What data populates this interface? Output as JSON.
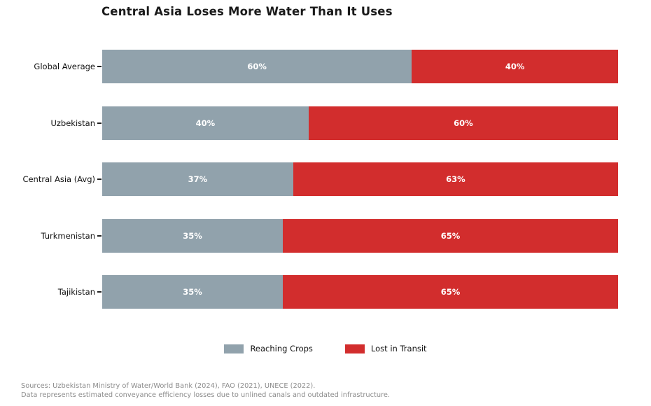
{
  "title": "Central Asia Loses More Water Than It Uses",
  "chart_data": {
    "type": "bar",
    "orientation": "horizontal",
    "stacked": true,
    "title": "Central Asia Loses More Water Than It Uses",
    "categories": [
      "Global Average",
      "Uzbekistan",
      "Central Asia (Avg)",
      "Turkmenistan",
      "Tajikistan"
    ],
    "series": [
      {
        "name": "Reaching Crops",
        "color": "#91a2ac",
        "values": [
          60,
          40,
          37,
          35,
          35
        ]
      },
      {
        "name": "Lost in Transit",
        "color": "#d22d2d",
        "values": [
          40,
          60,
          63,
          65,
          65
        ]
      }
    ],
    "value_unit": "%",
    "xlim": [
      0,
      100
    ],
    "grid": false,
    "legend_position": "bottom-center",
    "bar_labels": [
      [
        "60%",
        "40%"
      ],
      [
        "40%",
        "60%"
      ],
      [
        "37%",
        "63%"
      ],
      [
        "35%",
        "65%"
      ],
      [
        "35%",
        "65%"
      ]
    ]
  },
  "legend": {
    "items": [
      {
        "label": "Reaching Crops",
        "color": "#91a2ac"
      },
      {
        "label": "Lost in Transit",
        "color": "#d22d2d"
      }
    ]
  },
  "footer": {
    "line1": "Sources: Uzbekistan Ministry of Water/World Bank (2024), FAO (2021), UNECE (2022).",
    "line2": "Data represents estimated conveyance efficiency losses due to unlined canals and outdated infrastructure."
  },
  "colors": {
    "background": "#ffffff",
    "title_text": "#1a1a1a",
    "category_text": "#111111",
    "bar_value_text": "#ffffff",
    "footer_text": "#8c8c8c",
    "tick": "#222222"
  }
}
